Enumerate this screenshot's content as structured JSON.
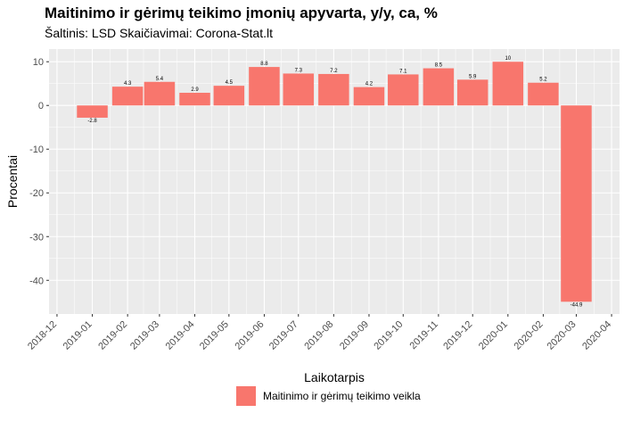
{
  "chart_data": {
    "type": "bar",
    "title": "Maitinimo ir gėrimų teikimo įmonių apyvarta, y/y, ca, %",
    "subtitle": "Šaltinis: LSD Skaičiavimai: Corona-Stat.lt",
    "xlabel": "Laikotarpis",
    "ylabel": "Procentai",
    "x_dates": [
      "2019-01",
      "2019-02",
      "2019-03",
      "2019-04",
      "2019-05",
      "2019-06",
      "2019-07",
      "2019-08",
      "2019-09",
      "2019-10",
      "2019-11",
      "2019-12",
      "2020-01",
      "2020-02",
      "2020-03"
    ],
    "x_tick_labels": [
      "2018-12",
      "2019-01",
      "2019-02",
      "2019-03",
      "2019-04",
      "2019-05",
      "2019-06",
      "2019-07",
      "2019-08",
      "2019-09",
      "2019-10",
      "2019-11",
      "2019-12",
      "2020-01",
      "2020-02",
      "2020-03",
      "2020-04"
    ],
    "values": [
      -2.8,
      4.3,
      5.4,
      2.9,
      4.5,
      8.8,
      7.3,
      7.2,
      4.2,
      7.1,
      8.5,
      5.9,
      10,
      5.2,
      -44.9
    ],
    "value_labels": [
      "-2.8",
      "4.3",
      "5.4",
      "2.9",
      "4.5",
      "8.8",
      "7.3",
      "7.2",
      "4.2",
      "7.1",
      "8.5",
      "5.9",
      "10",
      "5.2",
      "-44.9"
    ],
    "y_ticks": [
      10,
      0,
      -10,
      -20,
      -30,
      -40
    ],
    "y_tick_labels": [
      "10",
      "0",
      "-10",
      "-20",
      "-30",
      "-40"
    ],
    "ylim": [
      -47.7,
      12.9
    ],
    "grid": true,
    "legend_position": "bottom",
    "series_name": "Maitinimo ir gėrimų teikimo veikla",
    "bar_color": "#F8766D",
    "panel_color": "#EBEBEB"
  }
}
